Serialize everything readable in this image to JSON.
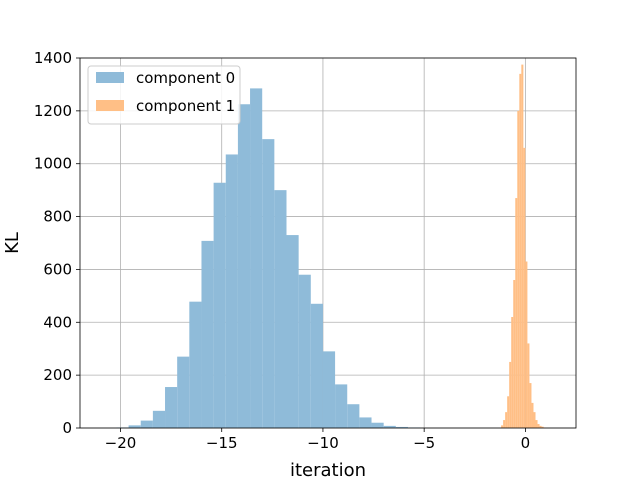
{
  "chart_data": {
    "type": "histogram",
    "title": "",
    "xlabel": "iteration",
    "ylabel": "KL",
    "xlim": [
      -22,
      2.5
    ],
    "ylim": [
      0,
      1400
    ],
    "xticks": [
      -20,
      -15,
      -10,
      -5,
      0
    ],
    "xtick_labels": [
      "−20",
      "−15",
      "−10",
      "−5",
      "0"
    ],
    "yticks": [
      0,
      200,
      400,
      600,
      800,
      1000,
      1200,
      1400
    ],
    "ytick_labels": [
      "0",
      "200",
      "400",
      "600",
      "800",
      "1000",
      "1200",
      "1400"
    ],
    "grid": true,
    "legend_position": "top-left",
    "series": [
      {
        "name": "component 0",
        "color": "#8fbbd9",
        "bin_edges": [
          -20.2,
          -19.6,
          -19.0,
          -18.4,
          -17.8,
          -17.2,
          -16.6,
          -16.0,
          -15.4,
          -14.8,
          -14.2,
          -13.6,
          -13.0,
          -12.4,
          -11.8,
          -11.2,
          -10.6,
          -10.0,
          -9.4,
          -8.8,
          -8.2,
          -7.6,
          -7.0,
          -6.4,
          -5.8,
          -5.2
        ],
        "counts": [
          2,
          10,
          28,
          65,
          155,
          270,
          478,
          708,
          928,
          1035,
          1225,
          1285,
          1093,
          900,
          730,
          580,
          470,
          290,
          165,
          90,
          40,
          20,
          8,
          4,
          2
        ]
      },
      {
        "name": "component 1",
        "color": "#ffbf86",
        "bin_edges": [
          -1.2,
          -1.1,
          -1.0,
          -0.9,
          -0.8,
          -0.7,
          -0.6,
          -0.5,
          -0.4,
          -0.3,
          -0.2,
          -0.1,
          0.0,
          0.1,
          0.2,
          0.3,
          0.4,
          0.5,
          0.6,
          0.7,
          0.8,
          0.9,
          1.0
        ],
        "counts": [
          10,
          30,
          60,
          120,
          250,
          420,
          560,
          870,
          1200,
          1340,
          1375,
          1060,
          630,
          320,
          170,
          95,
          60,
          30,
          15,
          8,
          5,
          2
        ]
      }
    ]
  }
}
